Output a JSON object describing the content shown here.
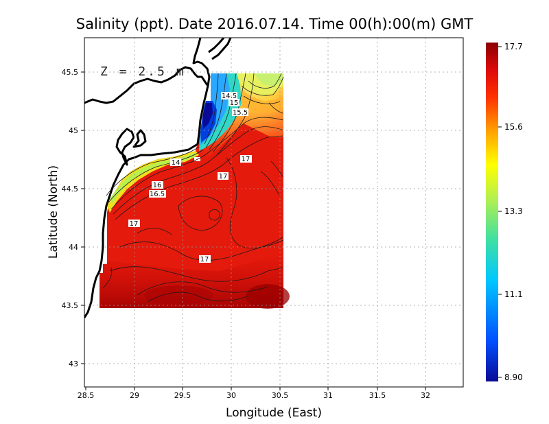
{
  "title": "Salinity (ppt). Date 2016.07.14. Time 00(h):00(m) GMT",
  "depth_label": "Z = 2.5 m",
  "chart_data": {
    "type": "heatmap",
    "variable": "Salinity (ppt)",
    "xlabel": "Longitude (East)",
    "ylabel": "Latitude (North)",
    "xlim": [
      28.5,
      32.4
    ],
    "ylim": [
      42.8,
      45.8
    ],
    "xticks": [
      "28.5",
      "29",
      "29.5",
      "30",
      "30.5",
      "31",
      "31.5",
      "32"
    ],
    "yticks": [
      "43",
      "43.5",
      "44",
      "44.5",
      "45",
      "45.5"
    ],
    "grid": true,
    "colorbar": {
      "min": 8.9,
      "max": 17.7,
      "tick_labels": [
        "17.7",
        "15.6",
        "13.3",
        "11.1",
        "8.90"
      ],
      "colors": [
        "#0a0a96",
        "#0050ff",
        "#00c8ff",
        "#40e0a0",
        "#b4f050",
        "#ffff00",
        "#ffa000",
        "#ff3000",
        "#dc0a0a",
        "#8c0000"
      ]
    },
    "contour_labels": [
      {
        "text": "14.5",
        "lon": 29.97,
        "lat": 45.31
      },
      {
        "text": "15",
        "lon": 30.02,
        "lat": 45.25
      },
      {
        "text": "15.5",
        "lon": 30.09,
        "lat": 45.16
      },
      {
        "text": "17",
        "lon": 30.16,
        "lat": 44.76
      },
      {
        "text": "14",
        "lon": 29.44,
        "lat": 44.73
      },
      {
        "text": "17",
        "lon": 29.92,
        "lat": 44.62
      },
      {
        "text": "16",
        "lon": 29.24,
        "lat": 44.53
      },
      {
        "text": "16.5",
        "lon": 29.24,
        "lat": 44.46
      },
      {
        "text": "17",
        "lon": 29.0,
        "lat": 44.2
      },
      {
        "text": "17",
        "lon": 29.74,
        "lat": 43.9
      }
    ]
  }
}
